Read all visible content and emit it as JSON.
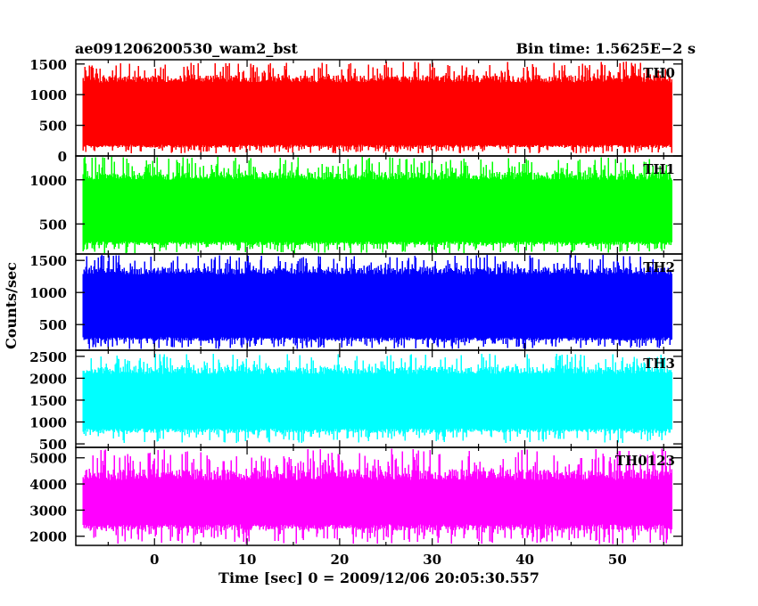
{
  "header": {
    "title": "ae091206200530_wam2_bst",
    "bin_time": "Bin time: 1.5625E−2 s"
  },
  "chart_data": {
    "type": "line",
    "xlabel": "Time [sec] 0 = 2009/12/06 20:05:30.557",
    "ylabel": "Counts/sec",
    "xlim": [
      -8.5,
      57
    ],
    "x_range": [
      -7.7,
      55.9
    ],
    "x_ticks": [
      0,
      10,
      20,
      30,
      40,
      50
    ],
    "panels": [
      {
        "name": "TH0",
        "color": "#ff0000",
        "ylim": [
          0,
          1570
        ],
        "yticks": [
          0,
          500,
          1000,
          1500
        ],
        "typical_range": [
          180,
          1200
        ],
        "spike_range": [
          40,
          1540
        ]
      },
      {
        "name": "TH1",
        "color": "#00ff00",
        "ylim": [
          160,
          1270
        ],
        "yticks": [
          500,
          1000
        ],
        "typical_range": [
          300,
          1000
        ],
        "spike_range": [
          165,
          1260
        ]
      },
      {
        "name": "TH2",
        "color": "#0000ff",
        "ylim": [
          100,
          1600
        ],
        "yticks": [
          500,
          1000,
          1500
        ],
        "typical_range": [
          300,
          1280
        ],
        "spike_range": [
          120,
          1590
        ]
      },
      {
        "name": "TH3",
        "color": "#00ffff",
        "ylim": [
          420,
          2640
        ],
        "yticks": [
          500,
          1000,
          1500,
          2000,
          2500
        ],
        "typical_range": [
          850,
          2100
        ],
        "spike_range": [
          520,
          2560
        ]
      },
      {
        "name": "TH0123",
        "color": "#ff00ff",
        "ylim": [
          1650,
          5400
        ],
        "yticks": [
          2000,
          3000,
          4000,
          5000
        ],
        "typical_range": [
          2450,
          4150
        ],
        "spike_range": [
          1700,
          5350
        ]
      }
    ]
  }
}
